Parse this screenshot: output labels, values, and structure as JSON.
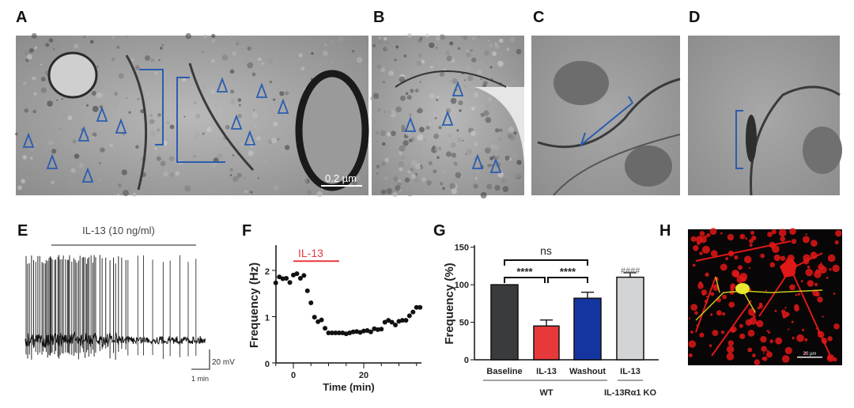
{
  "panel_labels": {
    "A": "A",
    "B": "B",
    "C": "C",
    "D": "D",
    "E": "E",
    "F": "F",
    "G": "G",
    "H": "H"
  },
  "panel_a": {
    "scale_bar_label": "0.2 µm"
  },
  "panel_h": {
    "scale_bar_label": "20 µm"
  },
  "annotation_color": "#2a5db0",
  "panel_e": {
    "treatment_label": "IL-13 (10 ng/ml)",
    "scale_voltage": "20 mV",
    "scale_time": "1 min"
  },
  "chart_data": [
    {
      "panel": "F",
      "type": "scatter",
      "xlabel": "Time (min)",
      "ylabel": "Frequency (Hz)",
      "xlim": [
        -5,
        36
      ],
      "ylim": [
        0,
        2.5
      ],
      "xticks": [
        0,
        20
      ],
      "yticks": [
        0,
        1,
        2
      ],
      "annotation": {
        "label": "IL-13",
        "start": 0,
        "end": 13,
        "color": "#e8393a"
      },
      "x": [
        -5,
        -4,
        -3,
        -2,
        -1,
        0,
        1,
        2,
        3,
        4,
        5,
        6,
        7,
        8,
        9,
        10,
        11,
        12,
        13,
        14,
        15,
        16,
        17,
        18,
        19,
        20,
        21,
        22,
        23,
        24,
        25,
        26,
        27,
        28,
        29,
        30,
        31,
        32,
        33,
        34,
        35,
        36
      ],
      "y": [
        1.73,
        1.86,
        1.82,
        1.83,
        1.74,
        1.9,
        1.93,
        1.83,
        1.89,
        1.56,
        1.3,
        0.99,
        0.89,
        0.93,
        0.75,
        0.65,
        0.65,
        0.65,
        0.65,
        0.65,
        0.63,
        0.65,
        0.67,
        0.68,
        0.66,
        0.69,
        0.7,
        0.67,
        0.74,
        0.72,
        0.73,
        0.88,
        0.92,
        0.88,
        0.82,
        0.9,
        0.92,
        0.92,
        1.02,
        1.1,
        1.2,
        1.2
      ]
    },
    {
      "panel": "G",
      "type": "bar",
      "ylabel": "Frequency (%)",
      "ylim": [
        0,
        150
      ],
      "yticks": [
        0,
        50,
        100,
        150
      ],
      "categories": [
        "Baseline",
        "IL-13",
        "Washout",
        "IL-13"
      ],
      "values": [
        100,
        45,
        82,
        110
      ],
      "errors": [
        0,
        8,
        8,
        6
      ],
      "colors": [
        "#3a3b3d",
        "#e8393a",
        "#1434a0",
        "#d3d4d5"
      ],
      "groups": [
        {
          "label": "WT",
          "categories": [
            0,
            1,
            2
          ]
        },
        {
          "label": "IL-13Rα1 KO",
          "categories": [
            3
          ]
        }
      ],
      "significance": [
        {
          "from": 0,
          "to": 1,
          "label": "****"
        },
        {
          "from": 1,
          "to": 2,
          "label": "****"
        },
        {
          "from": 0,
          "to": 2,
          "label": "ns"
        }
      ],
      "ko_marker": "####"
    }
  ]
}
